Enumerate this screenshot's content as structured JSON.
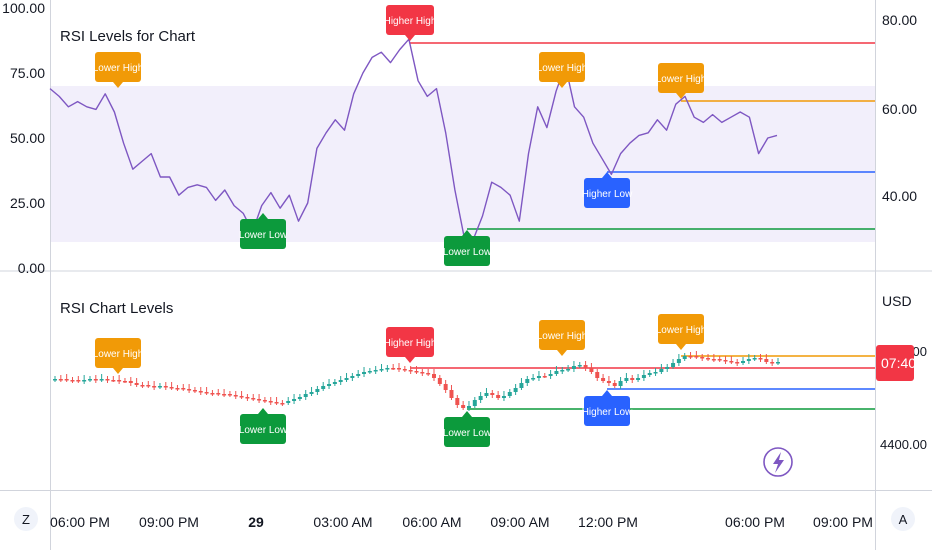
{
  "colors": {
    "rsi_line": "#7e57c2",
    "band_fill": "#f2effb",
    "red": "#f23645",
    "orange": "#f19a07",
    "blue": "#2962ff",
    "green": "#0c9a3c",
    "candle_up": "#26a69a",
    "candle_down": "#ef5350",
    "price_tag": "#f23645",
    "axis_text": "#131722",
    "lightning": "#7e57c2"
  },
  "top_pane": {
    "title": "RSI Levels for Chart",
    "left_ticks": [
      "100.00",
      "75.00",
      "50.00",
      "25.00",
      "0.00"
    ],
    "right_ticks": [
      "80.00",
      "60.00",
      "40.00"
    ]
  },
  "bottom_pane": {
    "title": "RSI Chart Levels",
    "currency": "USD",
    "right_tick_top": "4440.00",
    "right_tick_bottom": "4400.00",
    "price_tag": "07:40"
  },
  "time_axis": {
    "ticks": [
      "06:00 PM",
      "09:00 PM",
      "29",
      "03:00 AM",
      "06:00 AM",
      "09:00 AM",
      "12:00 PM",
      "06:00 PM",
      "09:00 PM"
    ]
  },
  "corner_buttons": {
    "left": "Z",
    "right": "A"
  },
  "chart_data": {
    "type": "line",
    "title": "RSI Levels for Chart",
    "rsi_axis_left_range": [
      0,
      100
    ],
    "rsi_band": [
      70,
      10
    ],
    "rsi_series": [
      69,
      66,
      62,
      64,
      62,
      61,
      67,
      60,
      48,
      38,
      41,
      44,
      35,
      35,
      28,
      31,
      32,
      31,
      26,
      30,
      24,
      21,
      14,
      24,
      29,
      23,
      28,
      18,
      25,
      46,
      52,
      57,
      53,
      67,
      75,
      81,
      83,
      79,
      84,
      88,
      72,
      66,
      69,
      52,
      30,
      12,
      11,
      20,
      33,
      31,
      28,
      18,
      44,
      62,
      54,
      68,
      78,
      62,
      58,
      48,
      42,
      36,
      44,
      48,
      51,
      52,
      57,
      53,
      63,
      66,
      58,
      56,
      59,
      56,
      58,
      60,
      58,
      44,
      50,
      51
    ],
    "annotations": [
      {
        "label": "Lower High",
        "type": "high",
        "color": "orange"
      },
      {
        "label": "Lower Low",
        "type": "low",
        "color": "green"
      },
      {
        "label": "Higher High",
        "type": "high",
        "color": "red"
      },
      {
        "label": "Lower Low",
        "type": "low",
        "color": "green"
      },
      {
        "label": "Lower High",
        "type": "high",
        "color": "orange"
      },
      {
        "label": "Higher Low",
        "type": "low",
        "color": "blue"
      },
      {
        "label": "Lower High",
        "type": "high",
        "color": "orange"
      }
    ],
    "level_lines": [
      {
        "name": "Higher High",
        "color": "red"
      },
      {
        "name": "Lower High",
        "color": "orange"
      },
      {
        "name": "Higher Low",
        "color": "blue"
      },
      {
        "name": "Lower Low",
        "color": "green"
      }
    ],
    "price_chart_title": "RSI Chart Levels",
    "price_annotations": [
      {
        "label": "Lower High",
        "type": "high",
        "color": "orange"
      },
      {
        "label": "Lower Low",
        "type": "low",
        "color": "green"
      },
      {
        "label": "Higher High",
        "type": "high",
        "color": "red"
      },
      {
        "label": "Lower Low",
        "type": "low",
        "color": "green"
      },
      {
        "label": "Lower High",
        "type": "high",
        "color": "orange"
      },
      {
        "label": "Higher Low",
        "type": "low",
        "color": "blue"
      },
      {
        "label": "Lower High",
        "type": "high",
        "color": "orange"
      }
    ]
  }
}
